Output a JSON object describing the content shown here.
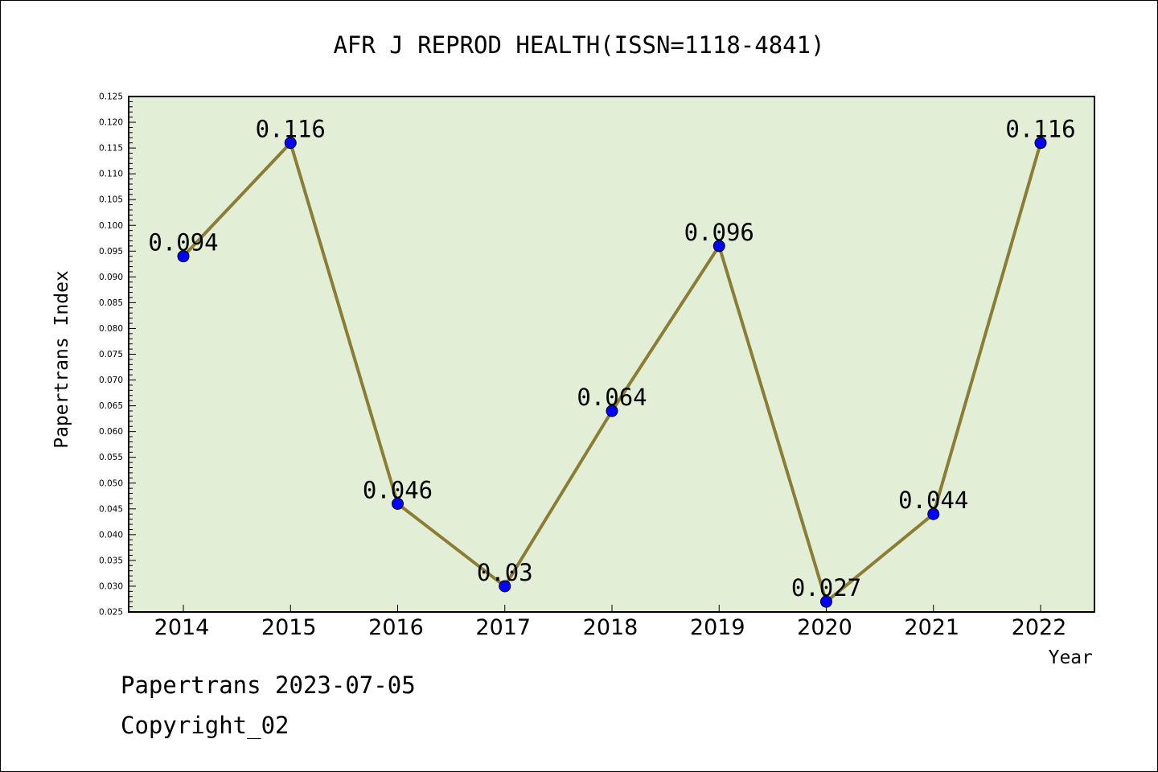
{
  "chart_data": {
    "type": "line",
    "title": "AFR J REPROD HEALTH(ISSN=1118-4841)",
    "xlabel": "Year",
    "ylabel": "Papertrans Index",
    "categories": [
      "2014",
      "2015",
      "2016",
      "2017",
      "2018",
      "2019",
      "2020",
      "2021",
      "2022"
    ],
    "series": [
      {
        "values": [
          0.094,
          0.116,
          0.046,
          0.03,
          0.064,
          0.096,
          0.027,
          0.044,
          0.116
        ],
        "labels": [
          "0.094",
          "0.116",
          "0.046",
          "0.03",
          "0.064",
          "0.096",
          "0.027",
          "0.044",
          "0.116"
        ]
      }
    ],
    "ylim": [
      0.025,
      0.125
    ],
    "ytick_step": 0.005,
    "yticks": [
      "0.025",
      "0.030",
      "0.035",
      "0.040",
      "0.045",
      "0.050",
      "0.055",
      "0.060",
      "0.065",
      "0.070",
      "0.075",
      "0.080",
      "0.085",
      "0.090",
      "0.095",
      "0.100",
      "0.105",
      "0.110",
      "0.115",
      "0.120",
      "0.125"
    ],
    "grid": false,
    "colors": {
      "plot_background": "#e2efd6",
      "line": "#8b7d35",
      "marker": "#0000ff"
    }
  },
  "footer": {
    "line1": "Papertrans 2023-07-05",
    "line2": "Copyright_02"
  }
}
